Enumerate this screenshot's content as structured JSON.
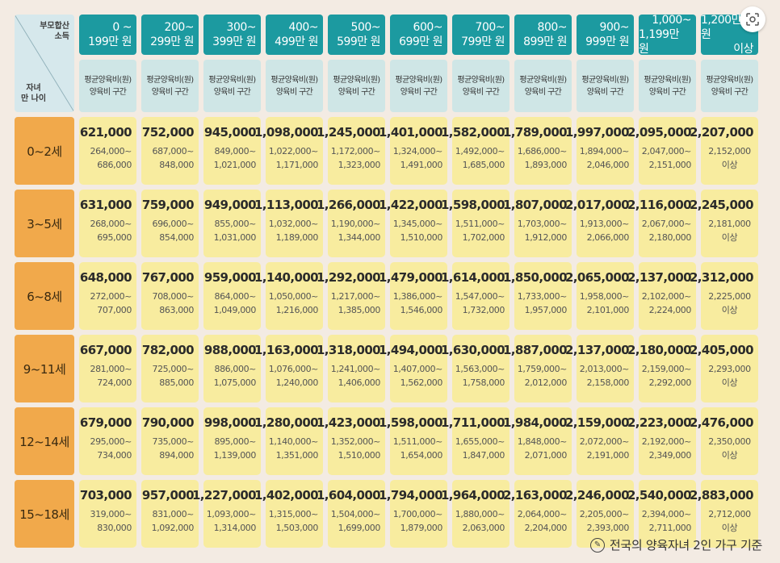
{
  "corner": {
    "top": [
      "부모합산",
      "소득"
    ],
    "bottom": [
      "자녀",
      "만 나이"
    ]
  },
  "income_brackets": [
    {
      "l1": "0 ~",
      "l2": "199만 원"
    },
    {
      "l1": "200~",
      "l2": "299만 원"
    },
    {
      "l1": "300~",
      "l2": "399만 원"
    },
    {
      "l1": "400~",
      "l2": "499만 원"
    },
    {
      "l1": "500~",
      "l2": "599만 원"
    },
    {
      "l1": "600~",
      "l2": "699만 원"
    },
    {
      "l1": "700~",
      "l2": "799만 원"
    },
    {
      "l1": "800~",
      "l2": "899만 원"
    },
    {
      "l1": "900~",
      "l2": "999만 원"
    },
    {
      "l1": "1,000~",
      "l2": "1,199만 원"
    },
    {
      "l1": "1,200만 원",
      "l2": "이상"
    }
  ],
  "subheader": {
    "l1": "평균양육비(원)",
    "l2": "양육비 구간"
  },
  "rows": [
    {
      "age": "0~2세",
      "cells": [
        {
          "avg": "621,000",
          "r1": "264,000~",
          "r2": "686,000"
        },
        {
          "avg": "752,000",
          "r1": "687,000~",
          "r2": "848,000"
        },
        {
          "avg": "945,000",
          "r1": "849,000~",
          "r2": "1,021,000"
        },
        {
          "avg": "1,098,000",
          "r1": "1,022,000~",
          "r2": "1,171,000"
        },
        {
          "avg": "1,245,000",
          "r1": "1,172,000~",
          "r2": "1,323,000"
        },
        {
          "avg": "1,401,000",
          "r1": "1,324,000~",
          "r2": "1,491,000"
        },
        {
          "avg": "1,582,000",
          "r1": "1,492,000~",
          "r2": "1,685,000"
        },
        {
          "avg": "1,789,000",
          "r1": "1,686,000~",
          "r2": "1,893,000"
        },
        {
          "avg": "1,997,000",
          "r1": "1,894,000~",
          "r2": "2,046,000"
        },
        {
          "avg": "2,095,000",
          "r1": "2,047,000~",
          "r2": "2,151,000"
        },
        {
          "avg": "2,207,000",
          "r1": "2,152,000",
          "r2": "이상"
        }
      ]
    },
    {
      "age": "3~5세",
      "cells": [
        {
          "avg": "631,000",
          "r1": "268,000~",
          "r2": "695,000"
        },
        {
          "avg": "759,000",
          "r1": "696,000~",
          "r2": "854,000"
        },
        {
          "avg": "949,000",
          "r1": "855,000~",
          "r2": "1,031,000"
        },
        {
          "avg": "1,113,000",
          "r1": "1,032,000~",
          "r2": "1,189,000"
        },
        {
          "avg": "1,266,000",
          "r1": "1,190,000~",
          "r2": "1,344,000"
        },
        {
          "avg": "1,422,000",
          "r1": "1,345,000~",
          "r2": "1,510,000"
        },
        {
          "avg": "1,598,000",
          "r1": "1,511,000~",
          "r2": "1,702,000"
        },
        {
          "avg": "1,807,000",
          "r1": "1,703,000~",
          "r2": "1,912,000"
        },
        {
          "avg": "2,017,000",
          "r1": "1,913,000~",
          "r2": "2,066,000"
        },
        {
          "avg": "2,116,000",
          "r1": "2,067,000~",
          "r2": "2,180,000"
        },
        {
          "avg": "2,245,000",
          "r1": "2,181,000",
          "r2": "이상"
        }
      ]
    },
    {
      "age": "6~8세",
      "cells": [
        {
          "avg": "648,000",
          "r1": "272,000~",
          "r2": "707,000"
        },
        {
          "avg": "767,000",
          "r1": "708,000~",
          "r2": "863,000"
        },
        {
          "avg": "959,000",
          "r1": "864,000~",
          "r2": "1,049,000"
        },
        {
          "avg": "1,140,000",
          "r1": "1,050,000~",
          "r2": "1,216,000"
        },
        {
          "avg": "1,292,000",
          "r1": "1,217,000~",
          "r2": "1,385,000"
        },
        {
          "avg": "1,479,000",
          "r1": "1,386,000~",
          "r2": "1,546,000"
        },
        {
          "avg": "1,614,000",
          "r1": "1,547,000~",
          "r2": "1,732,000"
        },
        {
          "avg": "1,850,000",
          "r1": "1,733,000~",
          "r2": "1,957,000"
        },
        {
          "avg": "2,065,000",
          "r1": "1,958,000~",
          "r2": "2,101,000"
        },
        {
          "avg": "2,137,000",
          "r1": "2,102,000~",
          "r2": "2,224,000"
        },
        {
          "avg": "2,312,000",
          "r1": "2,225,000",
          "r2": "이상"
        }
      ]
    },
    {
      "age": "9~11세",
      "cells": [
        {
          "avg": "667,000",
          "r1": "281,000~",
          "r2": "724,000"
        },
        {
          "avg": "782,000",
          "r1": "725,000~",
          "r2": "885,000"
        },
        {
          "avg": "988,000",
          "r1": "886,000~",
          "r2": "1,075,000"
        },
        {
          "avg": "1,163,000",
          "r1": "1,076,000~",
          "r2": "1,240,000"
        },
        {
          "avg": "1,318,000",
          "r1": "1,241,000~",
          "r2": "1,406,000"
        },
        {
          "avg": "1,494,000",
          "r1": "1,407,000~",
          "r2": "1,562,000"
        },
        {
          "avg": "1,630,000",
          "r1": "1,563,000~",
          "r2": "1,758,000"
        },
        {
          "avg": "1,887,000",
          "r1": "1,759,000~",
          "r2": "2,012,000"
        },
        {
          "avg": "2,137,000",
          "r1": "2,013,000~",
          "r2": "2,158,000"
        },
        {
          "avg": "2,180,000",
          "r1": "2,159,000~",
          "r2": "2,292,000"
        },
        {
          "avg": "2,405,000",
          "r1": "2,293,000",
          "r2": "이상"
        }
      ]
    },
    {
      "age": "12~14세",
      "cells": [
        {
          "avg": "679,000",
          "r1": "295,000~",
          "r2": "734,000"
        },
        {
          "avg": "790,000",
          "r1": "735,000~",
          "r2": "894,000"
        },
        {
          "avg": "998,000",
          "r1": "895,000~",
          "r2": "1,139,000"
        },
        {
          "avg": "1,280,000",
          "r1": "1,140,000~",
          "r2": "1,351,000"
        },
        {
          "avg": "1,423,000",
          "r1": "1,352,000~",
          "r2": "1,510,000"
        },
        {
          "avg": "1,598,000",
          "r1": "1,511,000~",
          "r2": "1,654,000"
        },
        {
          "avg": "1,711,000",
          "r1": "1,655,000~",
          "r2": "1,847,000"
        },
        {
          "avg": "1,984,000",
          "r1": "1,848,000~",
          "r2": "2,071,000"
        },
        {
          "avg": "2,159,000",
          "r1": "2,072,000~",
          "r2": "2,191,000"
        },
        {
          "avg": "2,223,000",
          "r1": "2,192,000~",
          "r2": "2,349,000"
        },
        {
          "avg": "2,476,000",
          "r1": "2,350,000",
          "r2": "이상"
        }
      ]
    },
    {
      "age": "15~18세",
      "cells": [
        {
          "avg": "703,000",
          "r1": "319,000~",
          "r2": "830,000"
        },
        {
          "avg": "957,000",
          "r1": "831,000~",
          "r2": "1,092,000"
        },
        {
          "avg": "1,227,000",
          "r1": "1,093,000~",
          "r2": "1,314,000"
        },
        {
          "avg": "1,402,000",
          "r1": "1,315,000~",
          "r2": "1,503,000"
        },
        {
          "avg": "1,604,000",
          "r1": "1,504,000~",
          "r2": "1,699,000"
        },
        {
          "avg": "1,794,000",
          "r1": "1,700,000~",
          "r2": "1,879,000"
        },
        {
          "avg": "1,964,000",
          "r1": "1,880,000~",
          "r2": "2,063,000"
        },
        {
          "avg": "2,163,000",
          "r1": "2,064,000~",
          "r2": "2,204,000"
        },
        {
          "avg": "2,246,000",
          "r1": "2,205,000~",
          "r2": "2,393,000"
        },
        {
          "avg": "2,540,000",
          "r1": "2,394,000~",
          "r2": "2,711,000"
        },
        {
          "avg": "2,883,000",
          "r1": "2,712,000",
          "r2": "이상"
        }
      ]
    }
  ],
  "footnote": "전국의 양육자녀 2인 가구 기준",
  "icons": {
    "footnote": "pen-icon",
    "lens": "lens-search-icon"
  },
  "colors": {
    "income_header": "#1c9aa0",
    "subheader": "#cfe6e6",
    "age": "#f1a94b",
    "cell": "#f8ec9f",
    "background": "#f3ebe3"
  }
}
